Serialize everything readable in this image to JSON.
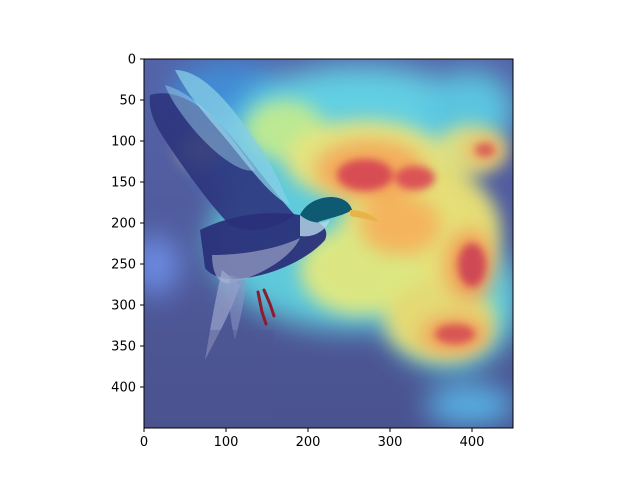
{
  "figure": {
    "image_description_tags": [
      "bird-icon",
      "heatmap-overlay"
    ]
  },
  "axes": {
    "x_ticks": [
      "0",
      "100",
      "200",
      "300",
      "400"
    ],
    "y_ticks": [
      "0",
      "50",
      "100",
      "150",
      "200",
      "250",
      "300",
      "350",
      "400"
    ],
    "x_range": [
      0,
      450
    ],
    "y_range": [
      0,
      450
    ],
    "y_inverted": true
  },
  "colors": {
    "background": "#4e5a9c",
    "cyan": "#5fe0e8",
    "yellow": "#f6e36e",
    "orange": "#f3a05a",
    "red": "#d9414f",
    "bird_dark": "#24286f",
    "bird_light": "#b9bdd9"
  }
}
